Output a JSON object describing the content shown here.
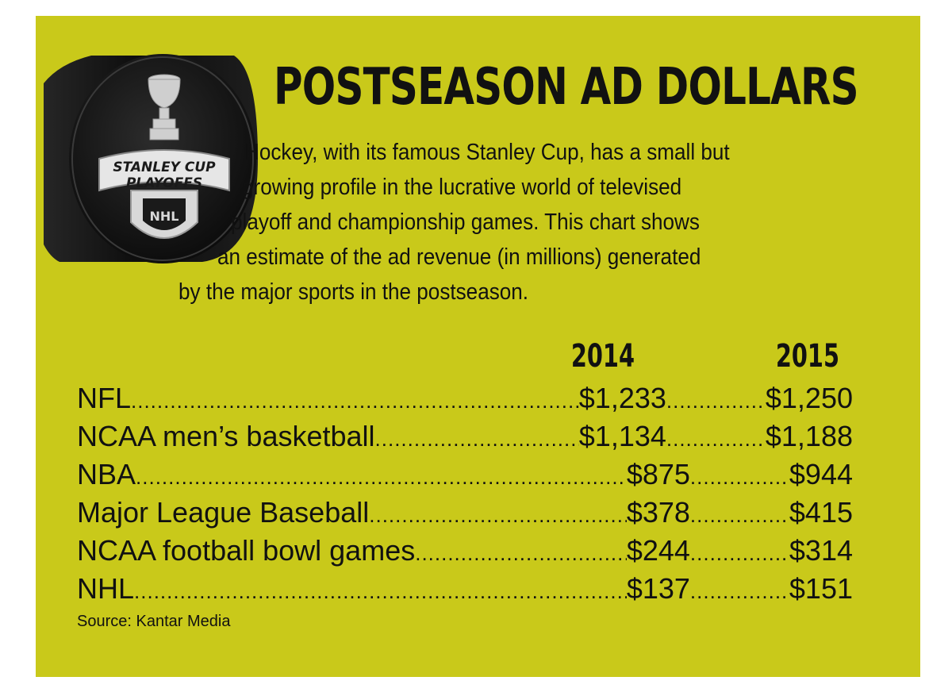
{
  "title": "POSTSEASON AD DOLLARS",
  "intro_lines": [
    "Hockey, with its famous Stanley Cup, has a small but",
    "growing profile in the lucrative world of televised",
    "playoff and championship games. This chart shows",
    "an estimate of the ad revenue (in millions) generated",
    "by the major sports in the postseason."
  ],
  "puck": {
    "logo_line1": "STANLEY CUP",
    "logo_line2": "PLAYOFFS",
    "logo_badge": "NHL"
  },
  "colors": {
    "panel": "#c9c91a",
    "text": "#111111",
    "puck": "#151515"
  },
  "source": "Source: Kantar Media",
  "chart_data": {
    "type": "table",
    "title": "POSTSEASON AD DOLLARS",
    "columns": [
      "2014",
      "2015"
    ],
    "rows": [
      {
        "name": "NFL",
        "values": [
          "$1,233",
          "$1,250"
        ]
      },
      {
        "name": "NCAA men’s basketball",
        "values": [
          "$1,134",
          "$1,188"
        ]
      },
      {
        "name": "NBA",
        "values": [
          "$875",
          "$944"
        ]
      },
      {
        "name": "Major League Baseball",
        "values": [
          "$378",
          "$415"
        ]
      },
      {
        "name": "NCAA football bowl games",
        "values": [
          "$244",
          "$314"
        ]
      },
      {
        "name": "NHL",
        "values": [
          "$137",
          "$151"
        ]
      }
    ]
  }
}
